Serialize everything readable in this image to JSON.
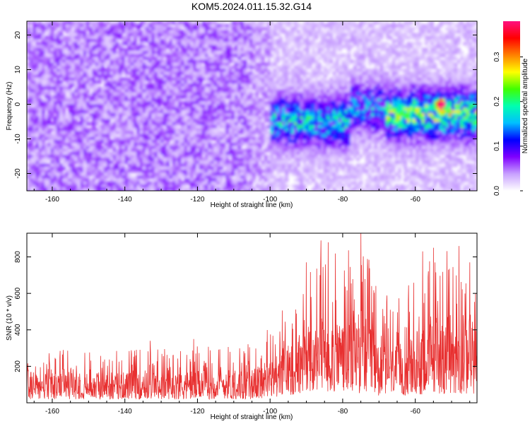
{
  "title": "KOM5.2024.011.15.32.G14",
  "chart_data": [
    {
      "type": "heatmap",
      "xlabel": "Height of straight line (km)",
      "ylabel": "Frequency (Hz)",
      "xlim": [
        -167,
        -43
      ],
      "ylim": [
        -25,
        24
      ],
      "x_ticks": [
        -160,
        -140,
        -120,
        -100,
        -80,
        -60
      ],
      "y_ticks": [
        -20,
        -10,
        0,
        10,
        20
      ],
      "colorbar": {
        "label": "Normalized spectral amplitude",
        "range": [
          0,
          0.38
        ],
        "ticks": [
          0.0,
          0.1,
          0.2,
          0.3
        ],
        "colormap": [
          "#ffffff",
          "#c8a0ff",
          "#7f00ff",
          "#0000ff",
          "#00bfff",
          "#00ffb0",
          "#40ff00",
          "#ffff00",
          "#ff8000",
          "#ff0000",
          "#ff1080"
        ]
      },
      "features": [
        {
          "x_range": [
            -167,
            -105
          ],
          "freq_range": [
            -25,
            24
          ],
          "level": 0.05,
          "description_visible": false
        },
        {
          "x_range": [
            -100,
            -78
          ],
          "freq_center": -5,
          "level": 0.15
        },
        {
          "x_range": [
            -78,
            -68
          ],
          "freq_center": -1,
          "level": 0.12
        },
        {
          "x_range": [
            -68,
            -43
          ],
          "freq_center": -3,
          "level": 0.2
        },
        {
          "x": -53,
          "freq": 0,
          "level": 0.36
        }
      ],
      "grid": false
    },
    {
      "type": "line",
      "xlabel": "Height of straight line (km)",
      "ylabel": "SNR (10 * v/v)",
      "xlim": [
        -167,
        -43
      ],
      "ylim": [
        0,
        930
      ],
      "x_ticks": [
        -160,
        -140,
        -120,
        -100,
        -80,
        -60
      ],
      "y_ticks": [
        200,
        400,
        600,
        800
      ],
      "series": [
        {
          "color": "#e83030",
          "envelope": [
            {
              "x": -167,
              "low": 20,
              "high": 280
            },
            {
              "x": -140,
              "low": 20,
              "high": 300
            },
            {
              "x": -120,
              "low": 20,
              "high": 310
            },
            {
              "x": -105,
              "low": 20,
              "high": 330
            },
            {
              "x": -100,
              "low": 30,
              "high": 420
            },
            {
              "x": -95,
              "low": 40,
              "high": 560
            },
            {
              "x": -90,
              "low": 60,
              "high": 760
            },
            {
              "x": -85,
              "low": 60,
              "high": 850
            },
            {
              "x": -80,
              "low": 60,
              "high": 800
            },
            {
              "x": -75,
              "low": 50,
              "high": 930
            },
            {
              "x": -70,
              "low": 40,
              "high": 620
            },
            {
              "x": -65,
              "low": 40,
              "high": 560
            },
            {
              "x": -60,
              "low": 40,
              "high": 700
            },
            {
              "x": -55,
              "low": 50,
              "high": 850
            },
            {
              "x": -50,
              "low": 50,
              "high": 840
            },
            {
              "x": -43,
              "low": 50,
              "high": 800
            }
          ],
          "peaks": [
            {
              "x": -157,
              "y": 290
            },
            {
              "x": -133,
              "y": 340
            },
            {
              "x": -121,
              "y": 350
            },
            {
              "x": -90,
              "y": 770
            },
            {
              "x": -86,
              "y": 890
            },
            {
              "x": -84,
              "y": 880
            },
            {
              "x": -75,
              "y": 930
            },
            {
              "x": -72,
              "y": 640
            },
            {
              "x": -58,
              "y": 830
            },
            {
              "x": -55,
              "y": 850
            },
            {
              "x": -48,
              "y": 860
            },
            {
              "x": -45,
              "y": 770
            }
          ]
        }
      ]
    }
  ]
}
